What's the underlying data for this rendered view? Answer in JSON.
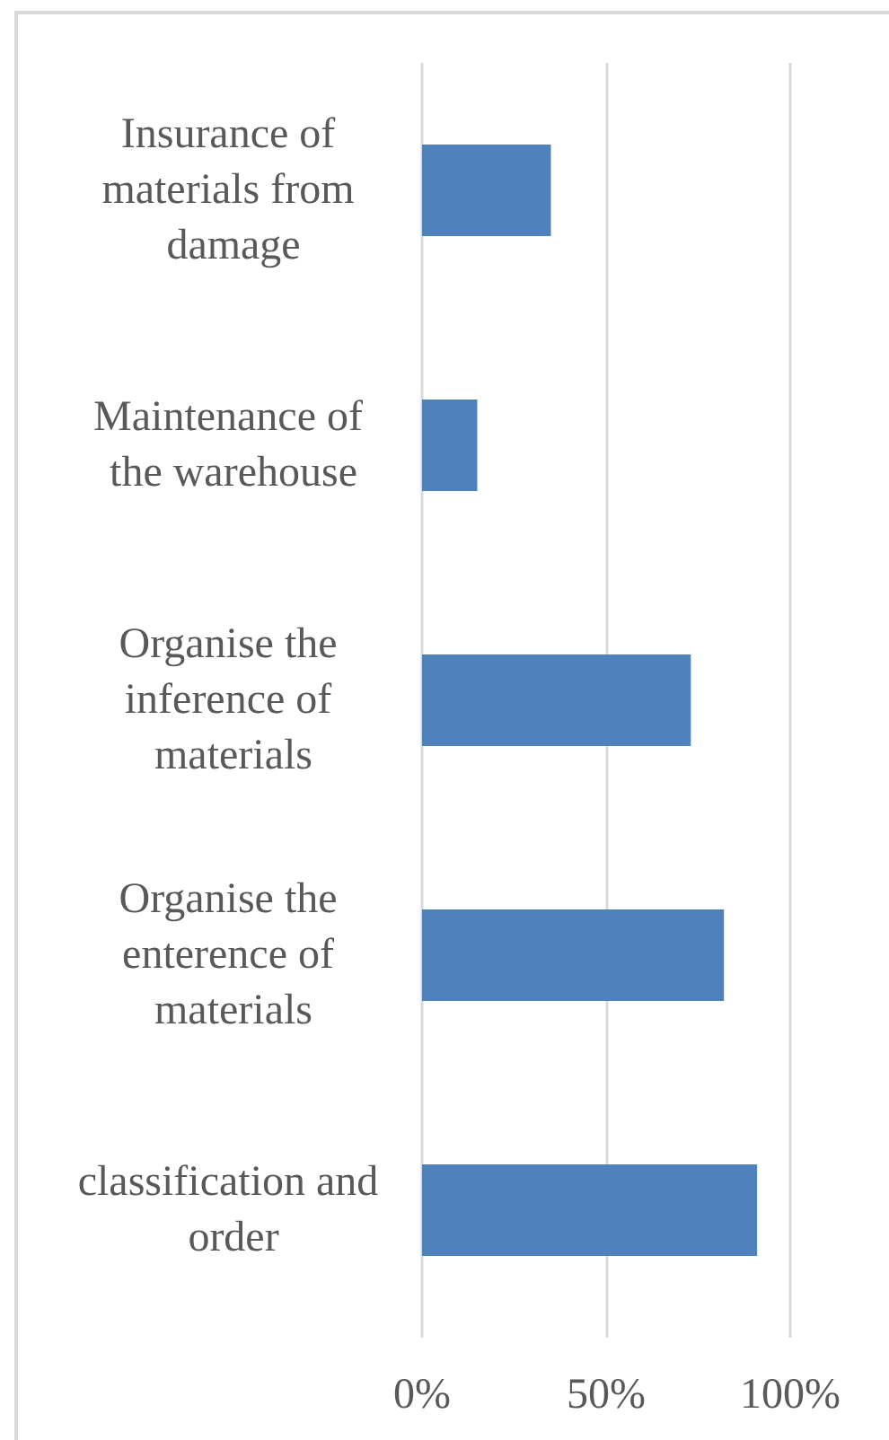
{
  "chart_data": {
    "type": "bar",
    "orientation": "horizontal",
    "categories": [
      "Insurance of materials from damage",
      "Maintenance of the warehouse",
      "Organise the inference of materials",
      "Organise the enterence of materials",
      "classification and order"
    ],
    "values": [
      35,
      15,
      73,
      82,
      91
    ],
    "color": "#4f81bd",
    "xlim": [
      0,
      100
    ],
    "xticks": [
      {
        "value": 0,
        "label": "0%"
      },
      {
        "value": 50,
        "label": "50%"
      },
      {
        "value": 100,
        "label": "100%"
      }
    ],
    "grid": "x"
  }
}
